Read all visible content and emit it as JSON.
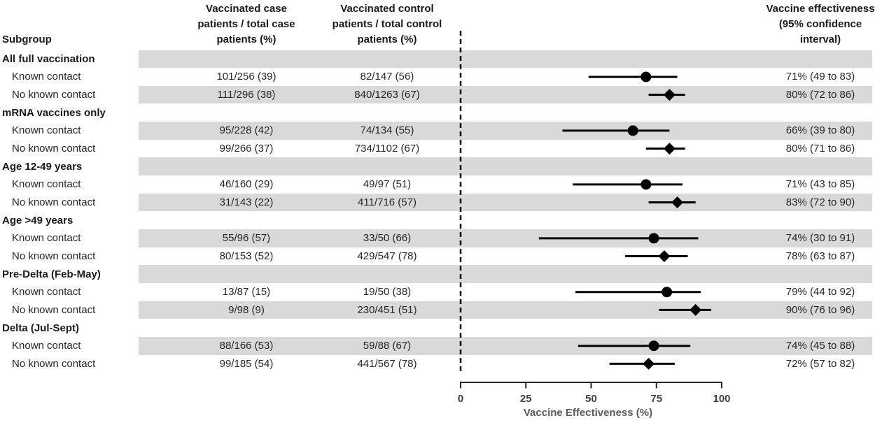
{
  "header": {
    "subgroup": "Subgroup",
    "case_col": [
      "Vaccinated case",
      "patients / total case",
      "patients (%)"
    ],
    "control_col": [
      "Vaccinated control",
      "patients / total control",
      "patients (%)"
    ],
    "ve_col": [
      "Vaccine effectiveness",
      "(95% confidence",
      "interval)"
    ]
  },
  "chart_data": {
    "type": "forest",
    "xlabel": "Vaccine Effectiveness (%)",
    "xlim": [
      0,
      100
    ],
    "x_ticks": [
      0,
      25,
      50,
      75,
      100
    ],
    "reference_line_x": 0,
    "marker_shapes": {
      "known_contact": "circle",
      "no_known_contact": "diamond"
    },
    "rows": [
      {
        "kind": "group",
        "label": "All full vaccination",
        "shaded": true
      },
      {
        "kind": "item",
        "label": "Known contact",
        "case": "101/256 (39)",
        "control": "82/147 (56)",
        "ve": 71,
        "ci_low": 49,
        "ci_high": 83,
        "ve_text": "71% (49 to 83)",
        "marker": "circle",
        "shaded": false
      },
      {
        "kind": "item",
        "label": "No known contact",
        "case": "111/296 (38)",
        "control": "840/1263 (67)",
        "ve": 80,
        "ci_low": 72,
        "ci_high": 86,
        "ve_text": "80% (72 to 86)",
        "marker": "diamond",
        "shaded": true
      },
      {
        "kind": "group",
        "label": "mRNA vaccines only",
        "shaded": false
      },
      {
        "kind": "item",
        "label": "Known contact",
        "case": "95/228 (42)",
        "control": "74/134 (55)",
        "ve": 66,
        "ci_low": 39,
        "ci_high": 80,
        "ve_text": "66% (39 to 80)",
        "marker": "circle",
        "shaded": true
      },
      {
        "kind": "item",
        "label": "No known contact",
        "case": "99/266 (37)",
        "control": "734/1102 (67)",
        "ve": 80,
        "ci_low": 71,
        "ci_high": 86,
        "ve_text": "80% (71 to 86)",
        "marker": "diamond",
        "shaded": false
      },
      {
        "kind": "group",
        "label": "Age 12-49 years",
        "shaded": true
      },
      {
        "kind": "item",
        "label": "Known contact",
        "case": "46/160 (29)",
        "control": "49/97 (51)",
        "ve": 71,
        "ci_low": 43,
        "ci_high": 85,
        "ve_text": "71% (43 to 85)",
        "marker": "circle",
        "shaded": false
      },
      {
        "kind": "item",
        "label": "No known contact",
        "case": "31/143 (22)",
        "control": "411/716 (57)",
        "ve": 83,
        "ci_low": 72,
        "ci_high": 90,
        "ve_text": "83% (72 to 90)",
        "marker": "diamond",
        "shaded": true
      },
      {
        "kind": "group",
        "label": "Age >49 years",
        "shaded": false
      },
      {
        "kind": "item",
        "label": "Known contact",
        "case": "55/96 (57)",
        "control": "33/50 (66)",
        "ve": 74,
        "ci_low": 30,
        "ci_high": 91,
        "ve_text": "74% (30 to 91)",
        "marker": "circle",
        "shaded": true
      },
      {
        "kind": "item",
        "label": "No known contact",
        "case": "80/153 (52)",
        "control": "429/547 (78)",
        "ve": 78,
        "ci_low": 63,
        "ci_high": 87,
        "ve_text": "78% (63 to 87)",
        "marker": "diamond",
        "shaded": false
      },
      {
        "kind": "group",
        "label": "Pre-Delta (Feb-May)",
        "shaded": true
      },
      {
        "kind": "item",
        "label": "Known contact",
        "case": "13/87 (15)",
        "control": "19/50 (38)",
        "ve": 79,
        "ci_low": 44,
        "ci_high": 92,
        "ve_text": "79% (44 to 92)",
        "marker": "circle",
        "shaded": false
      },
      {
        "kind": "item",
        "label": "No known contact",
        "case": "9/98 (9)",
        "control": "230/451 (51)",
        "ve": 90,
        "ci_low": 76,
        "ci_high": 96,
        "ve_text": "90% (76 to 96)",
        "marker": "diamond",
        "shaded": true
      },
      {
        "kind": "group",
        "label": "Delta (Jul-Sept)",
        "shaded": false
      },
      {
        "kind": "item",
        "label": "Known contact",
        "case": "88/166 (53)",
        "control": "59/88 (67)",
        "ve": 74,
        "ci_low": 45,
        "ci_high": 88,
        "ve_text": "74% (45 to 88)",
        "marker": "circle",
        "shaded": true
      },
      {
        "kind": "item",
        "label": "No known contact",
        "case": "99/185 (54)",
        "control": "441/567 (78)",
        "ve": 72,
        "ci_low": 57,
        "ci_high": 82,
        "ve_text": "72% (57 to 82)",
        "marker": "diamond",
        "shaded": false
      }
    ]
  },
  "colors": {
    "band": "#d9d9d9",
    "marker": "#000000",
    "text": "#262626",
    "axis_line": "#262626",
    "tick_label": "#404040",
    "axis_title": "#595959",
    "reference_line": "#000000"
  }
}
